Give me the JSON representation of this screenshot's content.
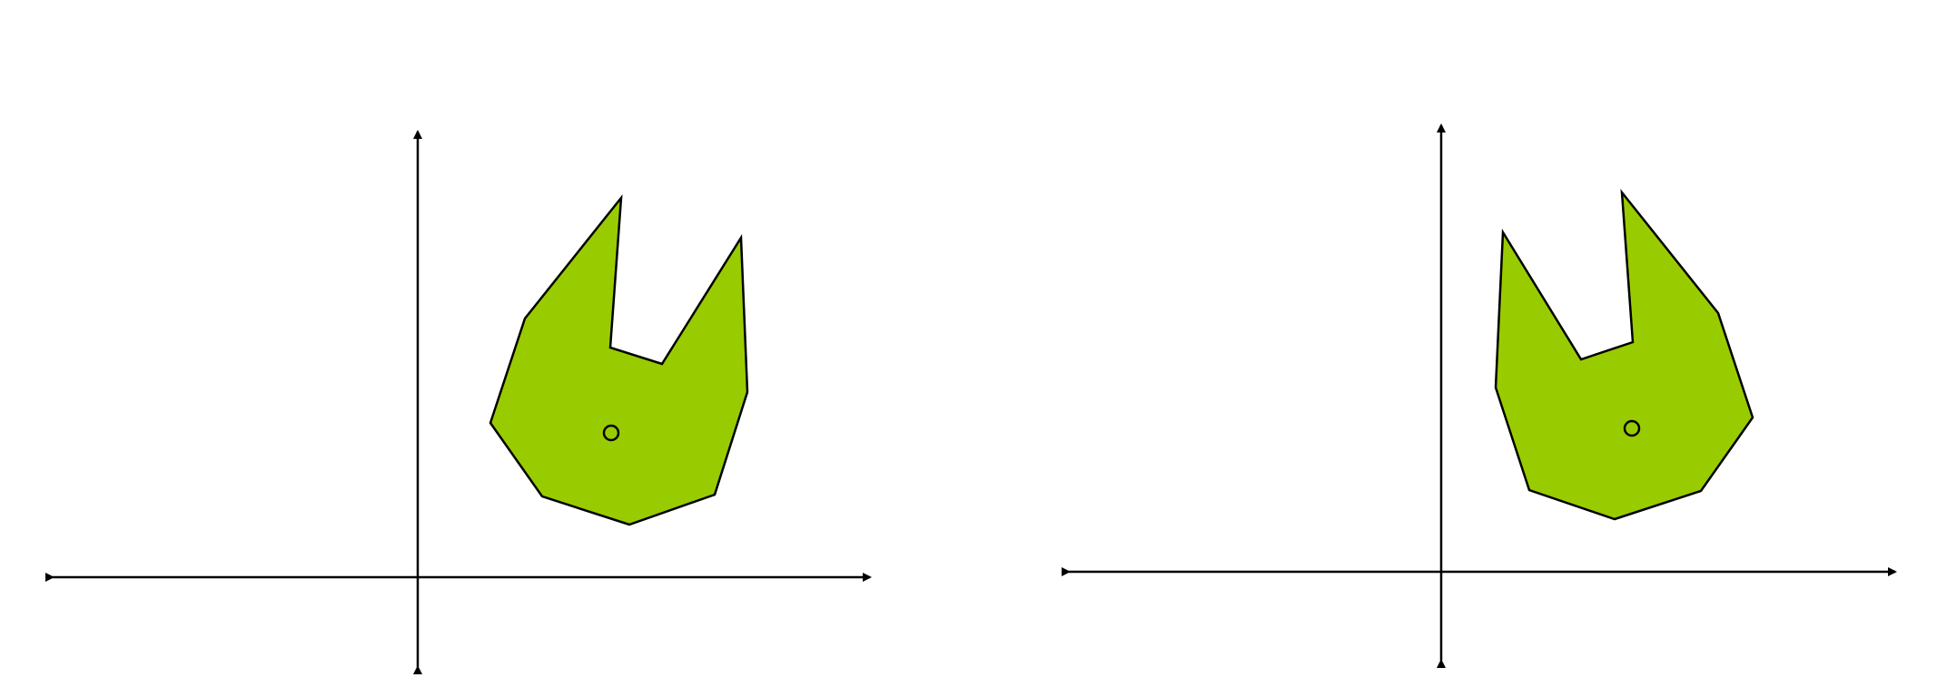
{
  "colors": {
    "background": "#ffffff",
    "shape_fill": "#99cc00",
    "stroke": "#000000"
  },
  "panels": [
    {
      "name": "original-panel",
      "shape": "green-polygon",
      "center_marker": "circle",
      "mirrored": false
    },
    {
      "name": "reflected-panel",
      "shape": "green-polygon",
      "center_marker": "circle",
      "mirrored": true
    }
  ]
}
